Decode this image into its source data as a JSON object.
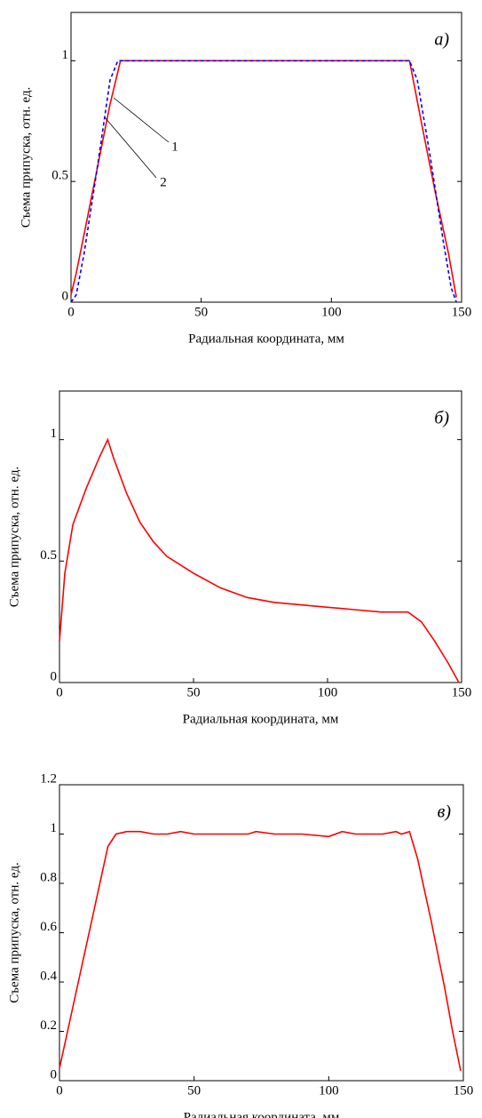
{
  "chart_data": [
    {
      "type": "line",
      "annotation": "а)",
      "x_label": "Радиальная координата, мм",
      "y_label": "Съема припуска, отн. ед.",
      "xlim": [
        0,
        150
      ],
      "xticks": [
        0,
        50,
        100,
        150
      ],
      "ylim": [
        0,
        1.2
      ],
      "yticks": [
        0,
        0.5,
        1
      ],
      "series": [
        {
          "name": "1",
          "color": "#ff0000",
          "style": "solid",
          "x": [
            0,
            2,
            5,
            10,
            15,
            19,
            130,
            135,
            140,
            145,
            148
          ],
          "values": [
            0.03,
            0.12,
            0.28,
            0.55,
            0.82,
            1,
            1,
            0.72,
            0.45,
            0.2,
            0.02
          ]
        },
        {
          "name": "2",
          "color": "#0000ff",
          "style": "dashed",
          "x": [
            0,
            2,
            5,
            10,
            15,
            18,
            130,
            133,
            138,
            143,
            146,
            148
          ],
          "values": [
            0,
            0.03,
            0.2,
            0.55,
            0.92,
            1,
            1,
            0.92,
            0.6,
            0.25,
            0.06,
            0
          ]
        }
      ]
    },
    {
      "type": "line",
      "annotation": "б)",
      "x_label": "Радиальная координата, мм",
      "y_label": "Съема припуска, отн. ед.",
      "xlim": [
        0,
        150
      ],
      "xticks": [
        0,
        50,
        100,
        150
      ],
      "ylim": [
        0,
        1.2
      ],
      "yticks": [
        0,
        0.5,
        1
      ],
      "series": [
        {
          "color": "#ff0000",
          "style": "solid",
          "x": [
            0,
            2,
            5,
            10,
            15,
            18,
            20,
            25,
            30,
            35,
            40,
            50,
            60,
            70,
            80,
            90,
            100,
            110,
            120,
            130,
            135,
            140,
            145,
            149
          ],
          "values": [
            0.17,
            0.45,
            0.65,
            0.8,
            0.93,
            1,
            0.93,
            0.78,
            0.66,
            0.58,
            0.52,
            0.45,
            0.39,
            0.35,
            0.33,
            0.32,
            0.31,
            0.3,
            0.29,
            0.29,
            0.25,
            0.17,
            0.08,
            0
          ]
        }
      ]
    },
    {
      "type": "line",
      "annotation": "в)",
      "x_label": "Радиальная координата, мм",
      "y_label": "Съема припуска, отн. ед.",
      "xlim": [
        0,
        150
      ],
      "xticks": [
        0,
        50,
        100,
        150
      ],
      "ylim": [
        0,
        1.2
      ],
      "yticks": [
        0,
        0.2,
        0.4,
        0.6,
        0.8,
        1,
        1.2
      ],
      "series": [
        {
          "color": "#ff0000",
          "style": "solid",
          "x": [
            0,
            3,
            8,
            13,
            18,
            21,
            25,
            30,
            35,
            40,
            45,
            50,
            60,
            70,
            73,
            80,
            90,
            100,
            105,
            110,
            120,
            125,
            127,
            130,
            133,
            138,
            143,
            146,
            149
          ],
          "values": [
            0.05,
            0.2,
            0.45,
            0.7,
            0.95,
            1,
            1.01,
            1.01,
            1,
            1,
            1.01,
            1,
            1,
            1,
            1.01,
            1,
            1,
            0.99,
            1.01,
            1,
            1,
            1.01,
            1,
            1.01,
            0.9,
            0.65,
            0.38,
            0.2,
            0.04
          ]
        }
      ]
    }
  ]
}
